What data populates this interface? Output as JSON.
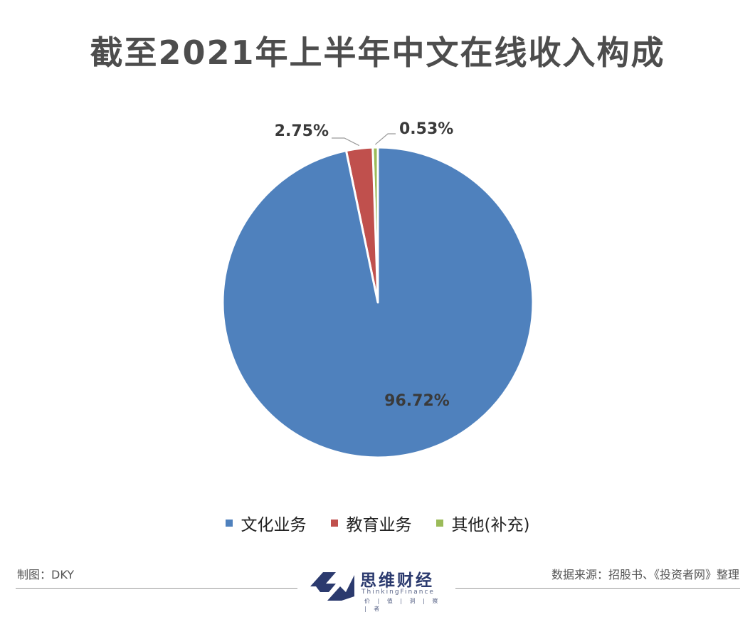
{
  "chart_data": {
    "type": "pie",
    "title": "截至2021年上半年中文在线收入构成",
    "categories": [
      "文化业务",
      "教育业务",
      "其他(补充)"
    ],
    "values": [
      96.72,
      2.75,
      0.53
    ],
    "data_labels": [
      "96.72%",
      "2.75%",
      "0.53%"
    ],
    "colors": [
      "#4f81bd",
      "#c0504d",
      "#9bbb59"
    ],
    "legend_position": "bottom"
  },
  "footer": {
    "credit": "制图：DKY",
    "source": "数据来源：招股书、《投资者网》整理",
    "brand_name": "思维财经",
    "brand_en": "ThinkingFinance",
    "brand_slogan": "价 | 值 | 洞 | 察 | 者"
  }
}
